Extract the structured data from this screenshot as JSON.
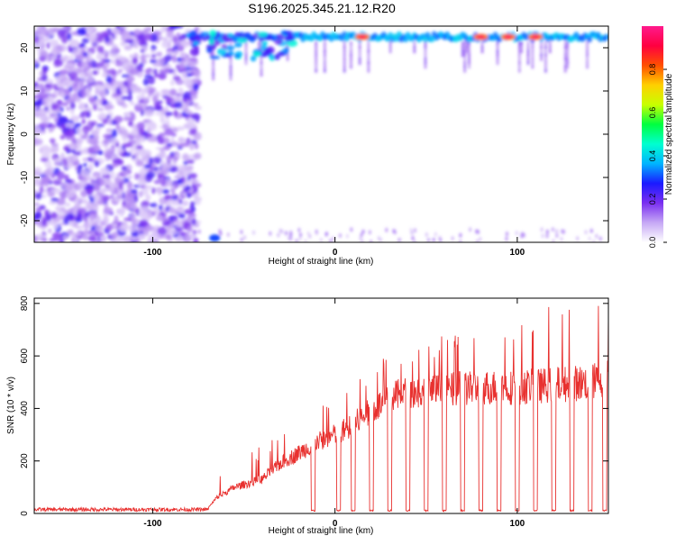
{
  "title": "S196.2025.345.21.12.R20",
  "chart_data": [
    {
      "type": "heatmap",
      "xlabel": "Height of straight line (km)",
      "ylabel": "Frequency (Hz)",
      "xlim": [
        -165,
        150
      ],
      "ylim": [
        -25,
        25
      ],
      "x_ticks": [
        -100,
        0,
        100
      ],
      "y_ticks": [
        -20,
        -10,
        0,
        10,
        20
      ],
      "colorbar": {
        "label": "Normalized spectral amplitude",
        "range": [
          0,
          1
        ],
        "ticks": [
          "0.0",
          "0.2",
          "0.4",
          "0.6",
          "0.8"
        ],
        "colors": [
          "#ffffff",
          "#c6a8f5",
          "#7a2ff0",
          "#1a1aff",
          "#00b4ff",
          "#00ffd0",
          "#00ff40",
          "#c8ff00",
          "#ffd000",
          "#ff5000",
          "#ff0040",
          "#ff1a8c"
        ]
      },
      "description_regions": {
        "noise_region_x": [
          -165,
          -75
        ],
        "signal_band_freq": [
          21,
          24
        ],
        "signal_band_x": [
          -80,
          150
        ],
        "peak_blobs_x": [
          15,
          80,
          95,
          110
        ]
      }
    },
    {
      "type": "line",
      "xlabel": "Height of straight line (km)",
      "ylabel": "SNR (10 * v/v)",
      "xlim": [
        -165,
        150
      ],
      "ylim": [
        0,
        820
      ],
      "x_ticks": [
        -100,
        0,
        100
      ],
      "y_ticks": [
        0,
        200,
        400,
        600,
        800
      ],
      "color": "#e8312f",
      "series_envelope": {
        "x": [
          -165,
          -100,
          -70,
          -65,
          -55,
          -40,
          -30,
          -20,
          -10,
          0,
          10,
          20,
          30,
          40,
          60,
          80,
          100,
          120,
          140,
          150
        ],
        "baseline": [
          15,
          15,
          15,
          60,
          100,
          130,
          190,
          230,
          270,
          300,
          340,
          390,
          440,
          460,
          470,
          480,
          480,
          490,
          500,
          520
        ],
        "peaks": [
          25,
          30,
          30,
          150,
          200,
          260,
          300,
          350,
          400,
          450,
          500,
          560,
          620,
          650,
          680,
          720,
          750,
          800,
          790,
          820
        ]
      },
      "dropouts_x": [
        -12,
        2,
        10,
        20,
        30,
        40,
        50,
        60,
        70,
        80,
        90,
        100,
        110,
        120,
        130,
        140,
        148
      ]
    }
  ]
}
